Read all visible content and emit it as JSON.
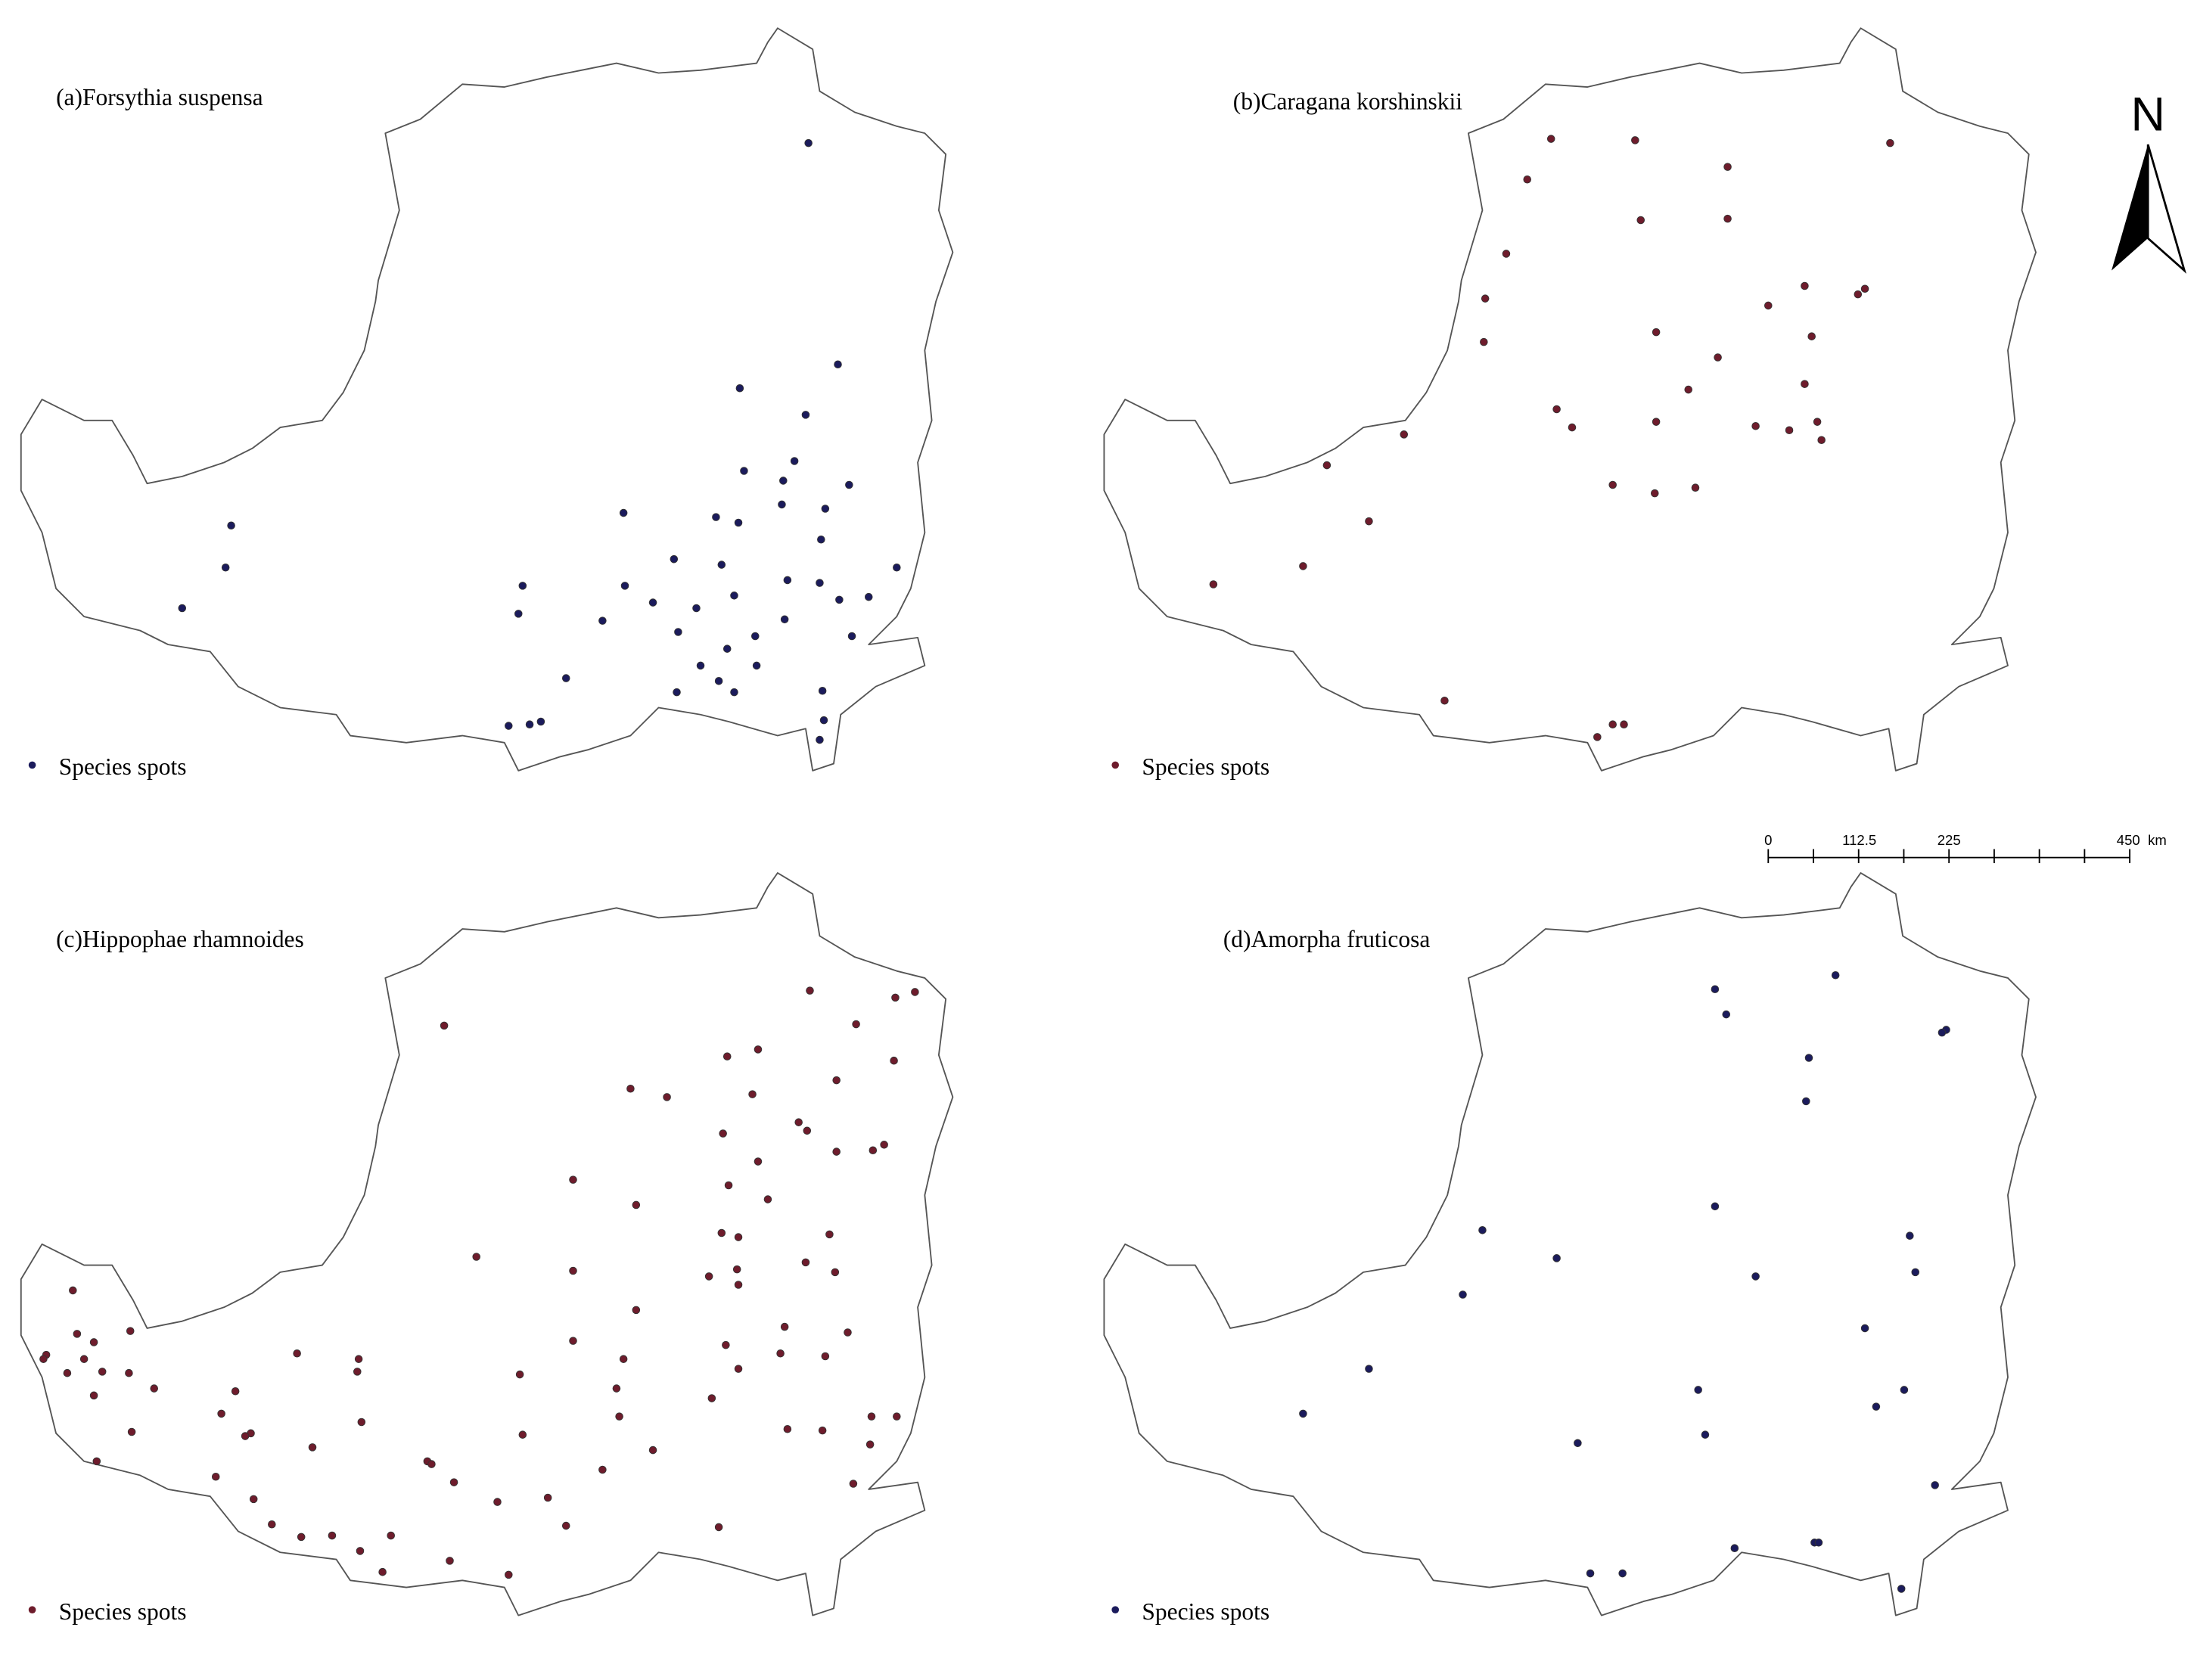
{
  "panels": [
    {
      "title": "(a)Forsythia suspensa",
      "legend": "Species spots"
    },
    {
      "title": "(b)Caragana korshinskii",
      "legend": "Species spots"
    },
    {
      "title": "(c)Hippophae rhamnoides",
      "legend": "Species spots"
    },
    {
      "title": "(d)Amorpha fruticosa",
      "legend": "Species spots"
    }
  ],
  "north_arrow": "N",
  "scale_bar": {
    "labels": [
      "0",
      "112.5",
      "225",
      "450"
    ],
    "unit": "km"
  }
}
